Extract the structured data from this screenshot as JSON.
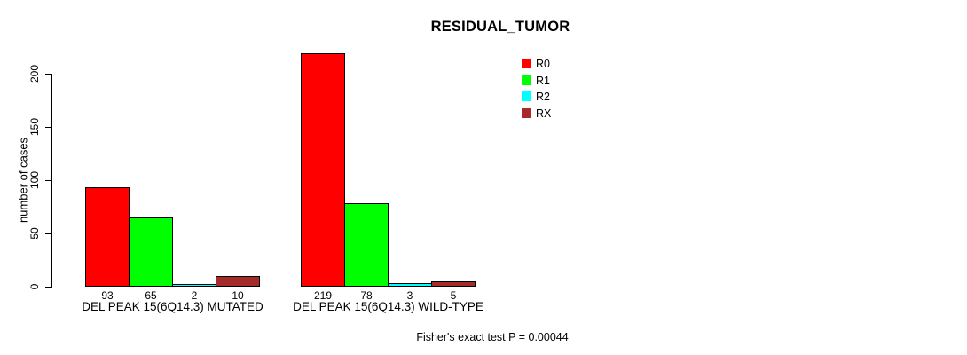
{
  "title": "RESIDUAL_TUMOR",
  "footer": "Fisher's exact test P = 0.00044",
  "colors": {
    "background": "#ffffff",
    "axis": "#000000",
    "r0": "#ff0000",
    "r1": "#00ff00",
    "r2": "#00ffff",
    "rx": "#a52a2a"
  },
  "legend": {
    "items": [
      {
        "label": "R0",
        "color": "#ff0000"
      },
      {
        "label": "R1",
        "color": "#00ff00"
      },
      {
        "label": "R2",
        "color": "#00ffff"
      },
      {
        "label": "RX",
        "color": "#a52a2a"
      }
    ]
  },
  "chart_data": {
    "type": "bar",
    "title": "RESIDUAL_TUMOR",
    "xlabel": "",
    "ylabel": "number of cases",
    "ylim": [
      0,
      220
    ],
    "yticks": [
      0,
      50,
      100,
      150,
      200
    ],
    "grid": false,
    "legend_position": "top-right",
    "categories": [
      "DEL PEAK 15(6Q14.3) MUTATED",
      "DEL PEAK 15(6Q14.3) WILD-TYPE"
    ],
    "series": [
      {
        "name": "R0",
        "color": "#ff0000",
        "values": [
          93,
          219
        ]
      },
      {
        "name": "R1",
        "color": "#00ff00",
        "values": [
          65,
          78
        ]
      },
      {
        "name": "R2",
        "color": "#00ffff",
        "values": [
          2,
          3
        ]
      },
      {
        "name": "RX",
        "color": "#a52a2a",
        "values": [
          10,
          5
        ]
      }
    ],
    "bar_value_labels": [
      [
        "93",
        "65",
        "2",
        "10"
      ],
      [
        "219",
        "78",
        "3",
        "5"
      ]
    ],
    "annotation": "Fisher's exact test P = 0.00044"
  }
}
